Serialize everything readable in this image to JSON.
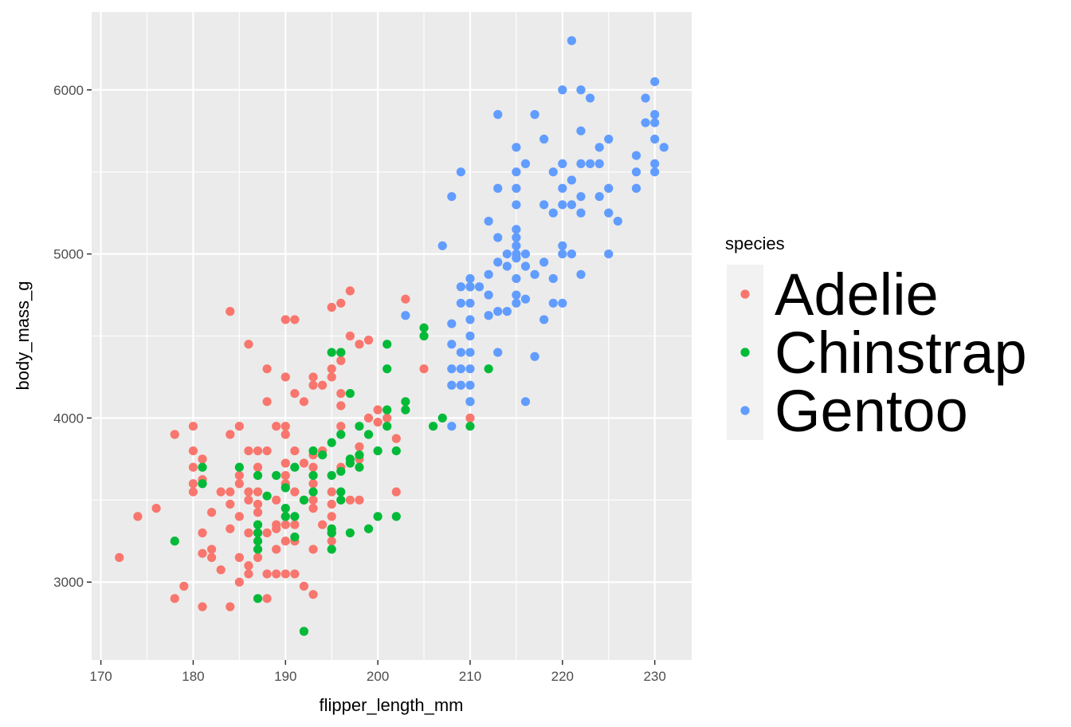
{
  "chart_data": {
    "type": "scatter",
    "xlabel": "flipper_length_mm",
    "ylabel": "body_mass_g",
    "xlim": [
      169,
      234
    ],
    "ylim": [
      2525,
      6475
    ],
    "x_ticks": [
      170,
      180,
      190,
      200,
      210,
      220,
      230
    ],
    "y_ticks": [
      3000,
      4000,
      5000,
      6000
    ],
    "x_tick_labels": [
      "170",
      "180",
      "190",
      "200",
      "210",
      "220",
      "230"
    ],
    "y_tick_labels": [
      "3000",
      "4000",
      "5000",
      "6000"
    ],
    "grid": true,
    "legend": {
      "title": "species",
      "placement": "right"
    },
    "series": [
      {
        "name": "Adelie",
        "color": "#F8766D",
        "points": [
          [
            172,
            3150
          ],
          [
            174,
            3400
          ],
          [
            176,
            3450
          ],
          [
            178,
            3900
          ],
          [
            178,
            2900
          ],
          [
            179,
            2975
          ],
          [
            180,
            3950
          ],
          [
            180,
            3800
          ],
          [
            180,
            3700
          ],
          [
            180,
            3600
          ],
          [
            180,
            3550
          ],
          [
            181,
            3750
          ],
          [
            181,
            3625
          ],
          [
            181,
            3300
          ],
          [
            181,
            3175
          ],
          [
            181,
            2850
          ],
          [
            182,
            3425
          ],
          [
            182,
            3200
          ],
          [
            182,
            3150
          ],
          [
            183,
            3550
          ],
          [
            183,
            3075
          ],
          [
            184,
            4650
          ],
          [
            184,
            3900
          ],
          [
            184,
            3550
          ],
          [
            184,
            3475
          ],
          [
            184,
            3325
          ],
          [
            184,
            2850
          ],
          [
            185,
            3950
          ],
          [
            185,
            3650
          ],
          [
            185,
            3600
          ],
          [
            185,
            3400
          ],
          [
            185,
            3150
          ],
          [
            185,
            3000
          ],
          [
            186,
            4450
          ],
          [
            186,
            3800
          ],
          [
            186,
            3550
          ],
          [
            186,
            3500
          ],
          [
            186,
            3300
          ],
          [
            186,
            3100
          ],
          [
            186,
            3050
          ],
          [
            187,
            3800
          ],
          [
            187,
            3700
          ],
          [
            187,
            3550
          ],
          [
            187,
            3475
          ],
          [
            187,
            3425
          ],
          [
            187,
            3300
          ],
          [
            187,
            3150
          ],
          [
            188,
            4300
          ],
          [
            188,
            4100
          ],
          [
            188,
            3800
          ],
          [
            188,
            3300
          ],
          [
            188,
            3050
          ],
          [
            188,
            2900
          ],
          [
            189,
            3950
          ],
          [
            189,
            3500
          ],
          [
            189,
            3350
          ],
          [
            189,
            3325
          ],
          [
            189,
            3200
          ],
          [
            189,
            3050
          ],
          [
            190,
            4600
          ],
          [
            190,
            4250
          ],
          [
            190,
            3950
          ],
          [
            190,
            3900
          ],
          [
            190,
            3725
          ],
          [
            190,
            3650
          ],
          [
            190,
            3600
          ],
          [
            190,
            3400
          ],
          [
            190,
            3350
          ],
          [
            190,
            3250
          ],
          [
            190,
            3050
          ],
          [
            191,
            4600
          ],
          [
            191,
            4150
          ],
          [
            191,
            3800
          ],
          [
            191,
            3550
          ],
          [
            191,
            3350
          ],
          [
            191,
            3250
          ],
          [
            191,
            3050
          ],
          [
            192,
            4100
          ],
          [
            192,
            3725
          ],
          [
            192,
            3500
          ],
          [
            192,
            2975
          ],
          [
            193,
            4250
          ],
          [
            193,
            4200
          ],
          [
            193,
            3775
          ],
          [
            193,
            3700
          ],
          [
            193,
            3600
          ],
          [
            193,
            3500
          ],
          [
            193,
            3450
          ],
          [
            193,
            3200
          ],
          [
            193,
            2925
          ],
          [
            194,
            4200
          ],
          [
            194,
            3800
          ],
          [
            194,
            3350
          ],
          [
            195,
            4675
          ],
          [
            195,
            4300
          ],
          [
            195,
            4250
          ],
          [
            195,
            3550
          ],
          [
            195,
            3475
          ],
          [
            195,
            3400
          ],
          [
            195,
            3300
          ],
          [
            195,
            3250
          ],
          [
            196,
            4700
          ],
          [
            196,
            4400
          ],
          [
            196,
            4350
          ],
          [
            196,
            4150
          ],
          [
            196,
            4075
          ],
          [
            196,
            3950
          ],
          [
            196,
            3700
          ],
          [
            197,
            4775
          ],
          [
            197,
            4500
          ],
          [
            197,
            3500
          ],
          [
            198,
            4450
          ],
          [
            198,
            3825
          ],
          [
            198,
            3750
          ],
          [
            198,
            3500
          ],
          [
            199,
            4475
          ],
          [
            199,
            4000
          ],
          [
            200,
            4050
          ],
          [
            200,
            3975
          ],
          [
            201,
            4000
          ],
          [
            202,
            3875
          ],
          [
            202,
            3550
          ],
          [
            203,
            4725
          ],
          [
            205,
            4300
          ],
          [
            210,
            4000
          ]
        ]
      },
      {
        "name": "Chinstrap",
        "color": "#00BA38",
        "points": [
          [
            178,
            3250
          ],
          [
            181,
            3700
          ],
          [
            181,
            3600
          ],
          [
            185,
            3700
          ],
          [
            187,
            3650
          ],
          [
            187,
            3350
          ],
          [
            187,
            3300
          ],
          [
            187,
            3250
          ],
          [
            187,
            3200
          ],
          [
            187,
            2900
          ],
          [
            188,
            3525
          ],
          [
            189,
            3650
          ],
          [
            190,
            3575
          ],
          [
            190,
            3450
          ],
          [
            190,
            3400
          ],
          [
            191,
            3700
          ],
          [
            191,
            3400
          ],
          [
            191,
            3275
          ],
          [
            192,
            3500
          ],
          [
            192,
            2700
          ],
          [
            193,
            3800
          ],
          [
            193,
            3650
          ],
          [
            193,
            3550
          ],
          [
            194,
            3775
          ],
          [
            195,
            4400
          ],
          [
            195,
            3850
          ],
          [
            195,
            3650
          ],
          [
            195,
            3325
          ],
          [
            195,
            3300
          ],
          [
            195,
            3200
          ],
          [
            196,
            4400
          ],
          [
            196,
            3900
          ],
          [
            196,
            3675
          ],
          [
            196,
            3550
          ],
          [
            196,
            3500
          ],
          [
            197,
            4150
          ],
          [
            197,
            3750
          ],
          [
            197,
            3725
          ],
          [
            197,
            3300
          ],
          [
            198,
            3950
          ],
          [
            198,
            3775
          ],
          [
            198,
            3700
          ],
          [
            199,
            3900
          ],
          [
            199,
            3325
          ],
          [
            200,
            3800
          ],
          [
            200,
            3400
          ],
          [
            201,
            4450
          ],
          [
            201,
            4300
          ],
          [
            201,
            4050
          ],
          [
            201,
            3950
          ],
          [
            202,
            3800
          ],
          [
            202,
            3400
          ],
          [
            203,
            4100
          ],
          [
            203,
            4050
          ],
          [
            205,
            4550
          ],
          [
            205,
            4500
          ],
          [
            206,
            3950
          ],
          [
            207,
            4000
          ],
          [
            210,
            4800
          ],
          [
            210,
            4100
          ],
          [
            210,
            3950
          ],
          [
            212,
            4300
          ]
        ]
      },
      {
        "name": "Gentoo",
        "color": "#619CFF",
        "points": [
          [
            203,
            4625
          ],
          [
            207,
            5050
          ],
          [
            208,
            5350
          ],
          [
            208,
            4575
          ],
          [
            208,
            4450
          ],
          [
            208,
            4300
          ],
          [
            208,
            4200
          ],
          [
            208,
            3950
          ],
          [
            209,
            5500
          ],
          [
            209,
            4800
          ],
          [
            209,
            4700
          ],
          [
            209,
            4400
          ],
          [
            209,
            4300
          ],
          [
            209,
            4200
          ],
          [
            210,
            4850
          ],
          [
            210,
            4800
          ],
          [
            210,
            4700
          ],
          [
            210,
            4600
          ],
          [
            210,
            4500
          ],
          [
            210,
            4400
          ],
          [
            210,
            4300
          ],
          [
            210,
            4200
          ],
          [
            210,
            4100
          ],
          [
            211,
            4800
          ],
          [
            212,
            5200
          ],
          [
            212,
            4875
          ],
          [
            212,
            4750
          ],
          [
            212,
            4625
          ],
          [
            213,
            5850
          ],
          [
            213,
            5400
          ],
          [
            213,
            5100
          ],
          [
            213,
            4950
          ],
          [
            213,
            4650
          ],
          [
            213,
            4400
          ],
          [
            214,
            5000
          ],
          [
            214,
            4925
          ],
          [
            214,
            4650
          ],
          [
            215,
            5650
          ],
          [
            215,
            5500
          ],
          [
            215,
            5400
          ],
          [
            215,
            5300
          ],
          [
            215,
            5150
          ],
          [
            215,
            5100
          ],
          [
            215,
            5050
          ],
          [
            215,
            5000
          ],
          [
            215,
            4975
          ],
          [
            215,
            4850
          ],
          [
            215,
            4750
          ],
          [
            215,
            4700
          ],
          [
            216,
            5550
          ],
          [
            216,
            5000
          ],
          [
            216,
            4925
          ],
          [
            216,
            4725
          ],
          [
            216,
            4100
          ],
          [
            217,
            5850
          ],
          [
            217,
            4875
          ],
          [
            217,
            4375
          ],
          [
            218,
            5700
          ],
          [
            218,
            5300
          ],
          [
            218,
            4950
          ],
          [
            218,
            4600
          ],
          [
            219,
            5500
          ],
          [
            219,
            5250
          ],
          [
            219,
            4850
          ],
          [
            219,
            4700
          ],
          [
            220,
            6000
          ],
          [
            220,
            5550
          ],
          [
            220,
            5400
          ],
          [
            220,
            5300
          ],
          [
            220,
            5050
          ],
          [
            220,
            5000
          ],
          [
            220,
            4700
          ],
          [
            221,
            6300
          ],
          [
            221,
            5450
          ],
          [
            221,
            5300
          ],
          [
            221,
            5000
          ],
          [
            222,
            6000
          ],
          [
            222,
            5750
          ],
          [
            222,
            5550
          ],
          [
            222,
            5350
          ],
          [
            222,
            5250
          ],
          [
            222,
            4875
          ],
          [
            223,
            5950
          ],
          [
            223,
            5550
          ],
          [
            224,
            5650
          ],
          [
            224,
            5550
          ],
          [
            224,
            5350
          ],
          [
            225,
            5700
          ],
          [
            225,
            5400
          ],
          [
            225,
            5250
          ],
          [
            225,
            5000
          ],
          [
            226,
            5200
          ],
          [
            228,
            5600
          ],
          [
            228,
            5500
          ],
          [
            228,
            5400
          ],
          [
            229,
            5950
          ],
          [
            229,
            5800
          ],
          [
            230,
            6050
          ],
          [
            230,
            5850
          ],
          [
            230,
            5800
          ],
          [
            230,
            5700
          ],
          [
            230,
            5550
          ],
          [
            230,
            5500
          ],
          [
            231,
            5650
          ]
        ]
      }
    ]
  },
  "colors": {
    "panel_background": "#EBEBEB",
    "grid_line": "#FFFFFF",
    "legend_key_background": "#F2F2F2"
  }
}
